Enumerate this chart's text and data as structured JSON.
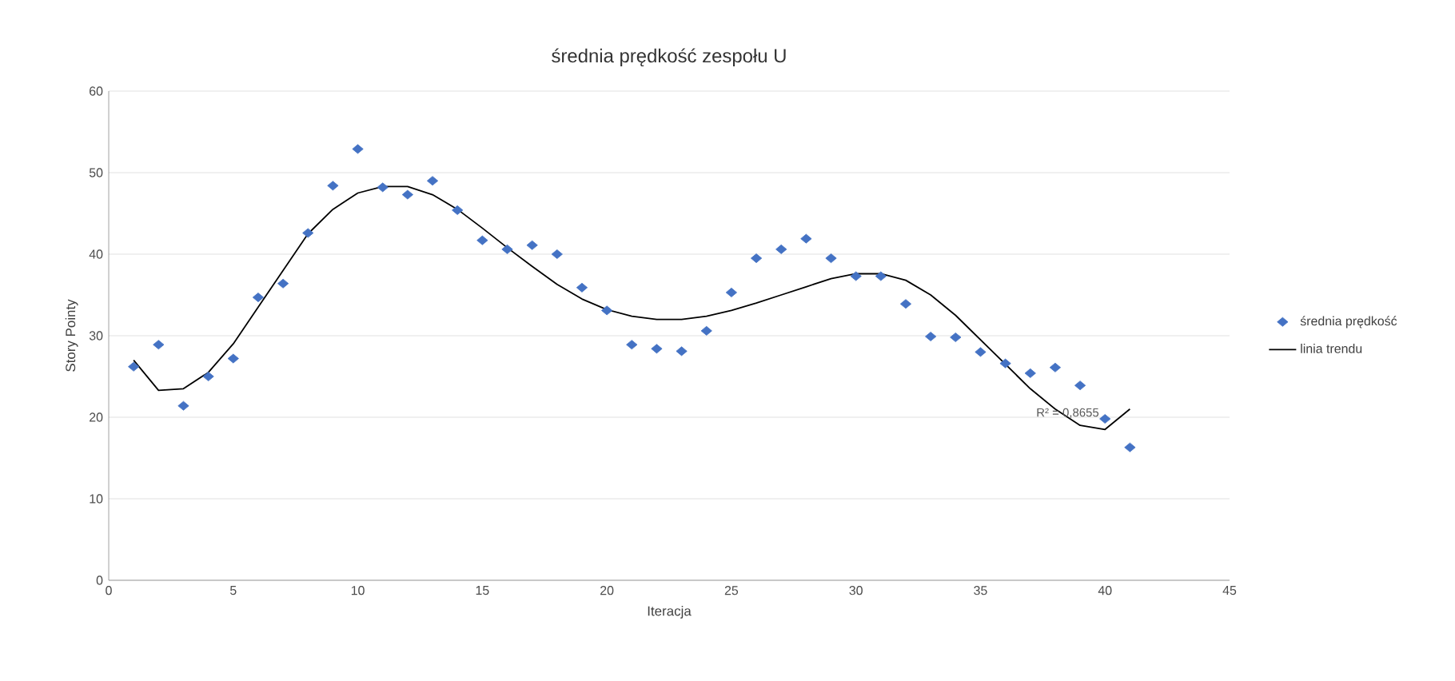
{
  "chart_data": {
    "type": "scatter",
    "title": "średnia prędkość zespołu U",
    "xlabel": "Iteracja",
    "ylabel": "Story Pointy",
    "xlim": [
      0,
      45
    ],
    "xticks": [
      0,
      5,
      10,
      15,
      20,
      25,
      30,
      35,
      40,
      45
    ],
    "ylim": [
      0,
      60
    ],
    "yticks": [
      0,
      10,
      20,
      30,
      40,
      50,
      60
    ],
    "grid": "y",
    "legend": "right",
    "marker": "diamond",
    "series": [
      {
        "name": "średnia prędkość",
        "color": "#4472c4",
        "x": [
          1,
          2,
          3,
          4,
          5,
          6,
          7,
          8,
          9,
          10,
          11,
          12,
          13,
          14,
          15,
          16,
          17,
          18,
          19,
          20,
          21,
          22,
          23,
          24,
          25,
          26,
          27,
          28,
          29,
          30,
          31,
          32,
          33,
          34,
          35,
          36,
          37,
          38,
          39,
          40,
          41
        ],
        "values": [
          26.2,
          28.9,
          21.4,
          25,
          27.2,
          34.7,
          36.4,
          42.6,
          48.4,
          52.9,
          48.2,
          47.3,
          49,
          45.4,
          41.7,
          40.6,
          41.1,
          40,
          35.9,
          33.1,
          28.9,
          28.4,
          28.1,
          30.6,
          35.3,
          39.5,
          40.6,
          41.9,
          39.5,
          37.3,
          37.3,
          33.9,
          29.9,
          29.8,
          28,
          26.6,
          25.4,
          26.1,
          23.9,
          19.8,
          16.3
        ]
      },
      {
        "name": "linia trendu",
        "type": "line",
        "color": "#000000",
        "marker": "none",
        "line_style": "solid",
        "x": [
          1,
          2,
          3,
          4,
          5,
          6,
          7,
          8,
          9,
          10,
          11,
          12,
          13,
          14,
          15,
          16,
          17,
          18,
          19,
          20,
          21,
          22,
          23,
          24,
          25,
          26,
          27,
          28,
          29,
          30,
          31,
          32,
          33,
          34,
          35,
          36,
          37,
          38,
          39,
          40,
          41
        ],
        "values": [
          27,
          23.3,
          23.5,
          25.5,
          29,
          33.5,
          38,
          42.5,
          45.5,
          47.5,
          48.3,
          48.3,
          47.3,
          45.5,
          43.2,
          40.8,
          38.5,
          36.3,
          34.5,
          33.2,
          32.4,
          32,
          32,
          32.4,
          33.1,
          34,
          35,
          36,
          37,
          37.6,
          37.6,
          36.8,
          35,
          32.5,
          29.5,
          26.5,
          23.5,
          21,
          19,
          18.5,
          21
        ]
      }
    ],
    "annotations": [
      {
        "text": "R² = 0,8655",
        "x": 38.5,
        "y": 20.5
      }
    ]
  }
}
